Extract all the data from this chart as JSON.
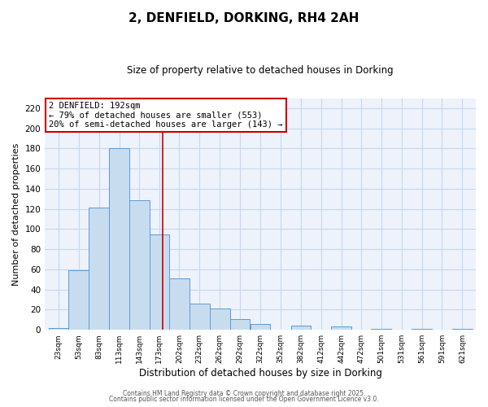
{
  "title": "2, DENFIELD, DORKING, RH4 2AH",
  "subtitle": "Size of property relative to detached houses in Dorking",
  "xlabel": "Distribution of detached houses by size in Dorking",
  "ylabel": "Number of detached properties",
  "bar_labels": [
    "23sqm",
    "53sqm",
    "83sqm",
    "113sqm",
    "143sqm",
    "173sqm",
    "202sqm",
    "232sqm",
    "262sqm",
    "292sqm",
    "322sqm",
    "352sqm",
    "382sqm",
    "412sqm",
    "442sqm",
    "472sqm",
    "501sqm",
    "531sqm",
    "561sqm",
    "591sqm",
    "621sqm"
  ],
  "bar_values": [
    2,
    59,
    121,
    180,
    129,
    95,
    51,
    26,
    21,
    11,
    6,
    0,
    4,
    0,
    3,
    0,
    1,
    0,
    1,
    0,
    1
  ],
  "bar_color": "#c8dcf0",
  "bar_edge_color": "#5b9bd5",
  "ylim": [
    0,
    230
  ],
  "yticks": [
    0,
    20,
    40,
    60,
    80,
    100,
    120,
    140,
    160,
    180,
    200,
    220
  ],
  "marker_x_label": "192sqm",
  "annotation_title": "2 DENFIELD: 192sqm",
  "annotation_line1": "← 79% of detached houses are smaller (553)",
  "annotation_line2": "20% of semi-detached houses are larger (143) →",
  "annotation_box_color": "#ffffff",
  "annotation_box_edge": "#cc0000",
  "vline_color": "#cc0000",
  "grid_color": "#c5d8ee",
  "bg_color": "#eef2fb",
  "footer1": "Contains HM Land Registry data © Crown copyright and database right 2025.",
  "footer2": "Contains public sector information licensed under the Open Government Licence v3.0.",
  "bin_edges": [
    23,
    53,
    83,
    113,
    143,
    173,
    202,
    232,
    262,
    292,
    322,
    352,
    382,
    412,
    442,
    472,
    501,
    531,
    561,
    591,
    621,
    651
  ],
  "vline_x": 192
}
